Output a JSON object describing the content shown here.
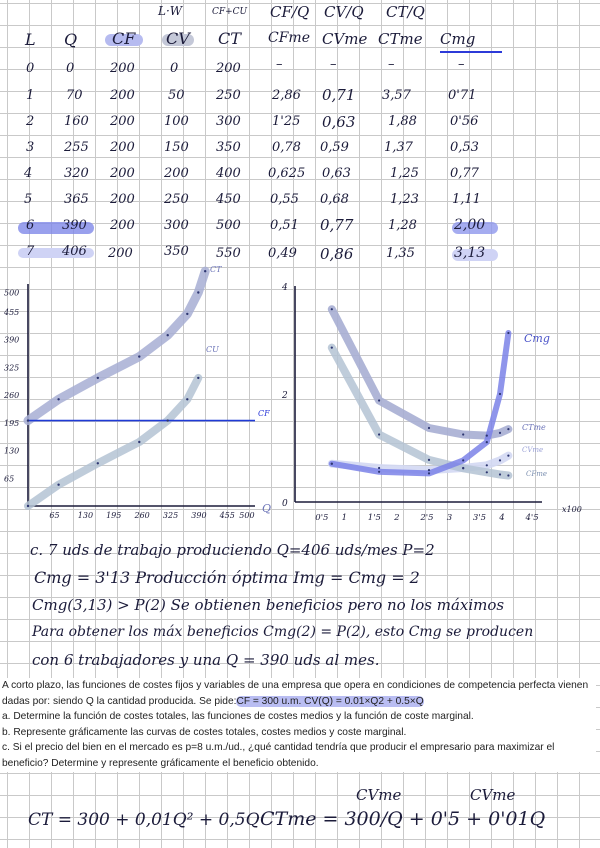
{
  "header": {
    "col_formulas": [
      "L·W",
      "CF+CU",
      "CF/Q",
      "CV/Q",
      "CT/Q"
    ],
    "columns": [
      "L",
      "Q",
      "CF",
      "CV",
      "CT",
      "CFme",
      "CVme",
      "CTme",
      "Cmg"
    ]
  },
  "table": {
    "rows": [
      [
        "0",
        "0",
        "200",
        "0",
        "200",
        "–",
        "–",
        "–",
        "–"
      ],
      [
        "1",
        "70",
        "200",
        "50",
        "250",
        "2,86",
        "0,71",
        "3,57",
        "0'71"
      ],
      [
        "2",
        "160",
        "200",
        "100",
        "300",
        "1'25",
        "0,63",
        "1,88",
        "0'56"
      ],
      [
        "3",
        "255",
        "200",
        "150",
        "350",
        "0,78",
        "0,59",
        "1,37",
        "0,53"
      ],
      [
        "4",
        "320",
        "200",
        "200",
        "400",
        "0,625",
        "0,63",
        "1,25",
        "0,77"
      ],
      [
        "5",
        "365",
        "200",
        "250",
        "450",
        "0,55",
        "0,68",
        "1,23",
        "1,11"
      ],
      [
        "6",
        "390",
        "200",
        "300",
        "500",
        "0,51",
        "0,77",
        "1,28",
        "2,00"
      ],
      [
        "7",
        "406",
        "200",
        "350",
        "550",
        "0,49",
        "0,86",
        "1,35",
        "3,13"
      ]
    ]
  },
  "chart_data": [
    {
      "type": "line",
      "xlabel": "Q",
      "x_ticks": [
        "65",
        "130",
        "195",
        "260",
        "325",
        "390",
        "455",
        "500"
      ],
      "y_ticks": [
        "500",
        "455",
        "390",
        "325",
        "260",
        "195",
        "130",
        "65"
      ],
      "xlim": [
        0,
        520
      ],
      "ylim": [
        0,
        520
      ],
      "series": [
        {
          "name": "CT",
          "x": [
            0,
            70,
            160,
            255,
            320,
            365,
            390,
            406
          ],
          "values": [
            200,
            250,
            300,
            350,
            400,
            450,
            500,
            550
          ]
        },
        {
          "name": "CV",
          "x": [
            0,
            70,
            160,
            255,
            320,
            365,
            390
          ],
          "values": [
            0,
            50,
            100,
            150,
            200,
            250,
            300
          ]
        },
        {
          "name": "CF",
          "x": [
            0,
            520
          ],
          "values": [
            200,
            200
          ]
        }
      ],
      "labels": [
        "CT",
        "CU",
        "CF"
      ]
    },
    {
      "type": "line",
      "xlabel": "x100",
      "x_ticks": [
        "0'5",
        "1",
        "1'5",
        "2",
        "2'5",
        "3",
        "3'5",
        "4",
        "4'5"
      ],
      "y_ticks": [
        "4",
        "2",
        "0"
      ],
      "xlim": [
        0,
        4.7
      ],
      "ylim": [
        0,
        4
      ],
      "series": [
        {
          "name": "CTme",
          "x": [
            0.7,
            1.6,
            2.55,
            3.2,
            3.65,
            3.9,
            4.06
          ],
          "values": [
            3.57,
            1.88,
            1.37,
            1.25,
            1.23,
            1.28,
            1.35
          ]
        },
        {
          "name": "CVme",
          "x": [
            0.7,
            1.6,
            2.55,
            3.2,
            3.65,
            3.9,
            4.06
          ],
          "values": [
            0.71,
            0.63,
            0.59,
            0.63,
            0.68,
            0.77,
            0.86
          ]
        },
        {
          "name": "CFme",
          "x": [
            0.7,
            1.6,
            2.55,
            3.2,
            3.65,
            3.9,
            4.06
          ],
          "values": [
            2.86,
            1.25,
            0.78,
            0.625,
            0.55,
            0.51,
            0.49
          ]
        },
        {
          "name": "Cmg",
          "x": [
            0.7,
            1.6,
            2.55,
            3.2,
            3.65,
            3.9,
            4.06
          ],
          "values": [
            0.71,
            0.56,
            0.53,
            0.77,
            1.11,
            2.0,
            3.13
          ]
        }
      ],
      "labels": [
        "Cmg",
        "CTme",
        "CVme",
        "CFme"
      ]
    }
  ],
  "notes": {
    "line1": "c. 7 uds de trabajo produciendo Q=406 uds/mes  P=2",
    "line2": "Cmg = 3'13   Producción óptima Img = Cmg = 2",
    "line3": "Cmg(3,13) > P(2)  Se obtienen beneficios pero no los máximos",
    "line4": "Para obtener los máx beneficios Cmg(2) = P(2), esto Cmg se producen",
    "line5": "con 6 trabajadores y una Q = 390 uds al mes."
  },
  "statement": {
    "intro": "A corto plazo, las funciones de costes fijos y variables de una empresa que opera en condiciones de competencia perfecta vienen dadas por: siendo Q la cantidad producida. Se pide:",
    "hl": "CF = 300 u.m. CV(Q) = 0.01×Q2 + 0.5×Q",
    "a": "a. Determine la función de costes totales, las funciones de costes medios y la función de coste marginal.",
    "b": "b. Represente gráficamente las curvas de costes totales, costes medios y coste marginal.",
    "c": "c. Si el precio del bien en el mercado es p=8 u.m./ud., ¿qué cantidad tendría que producir el empresario para maximizar el beneficio? Determine y represente gráficamente el beneficio obtenido."
  },
  "bottom": {
    "cvme_label1": "CVme",
    "cvme_label2": "CVme",
    "ct_formula": "CT = 300 + 0,01Q² + 0,5Q",
    "ctme_formula": "CTme = 300/Q + 0'5 + 0'01Q"
  },
  "colors": {
    "ink": "#1b1b3a",
    "highlight_blue": "#7b83e8",
    "highlight_grey": "#a9b2c6",
    "cf_line": "#1f3ad6"
  }
}
